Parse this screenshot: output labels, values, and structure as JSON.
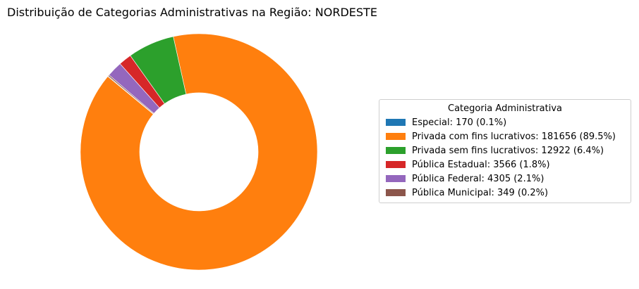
{
  "chart_data": {
    "type": "pie",
    "title": "Distribuição de Categorias Administrativas na Região: NORDESTE",
    "legend_title": "Categoria Administrativa",
    "legend_position": "right",
    "hole": "donut",
    "slices": [
      {
        "label": "Especial: 170 (0.1%)",
        "value": 170,
        "color": "#1f77b4"
      },
      {
        "label": "Privada com fins lucrativos: 181656 (89.5%)",
        "value": 181656,
        "color": "#ff7f0e"
      },
      {
        "label": "Privada sem fins lucrativos: 12922 (6.4%)",
        "value": 12922,
        "color": "#2ca02c"
      },
      {
        "label": "Pública Estadual: 3566 (1.8%)",
        "value": 3566,
        "color": "#d62728"
      },
      {
        "label": "Pública Federal: 4305 (2.1%)",
        "value": 4305,
        "color": "#9467bd"
      },
      {
        "label": "Pública Municipal: 349 (0.2%)",
        "value": 349,
        "color": "#8c564b"
      }
    ]
  }
}
